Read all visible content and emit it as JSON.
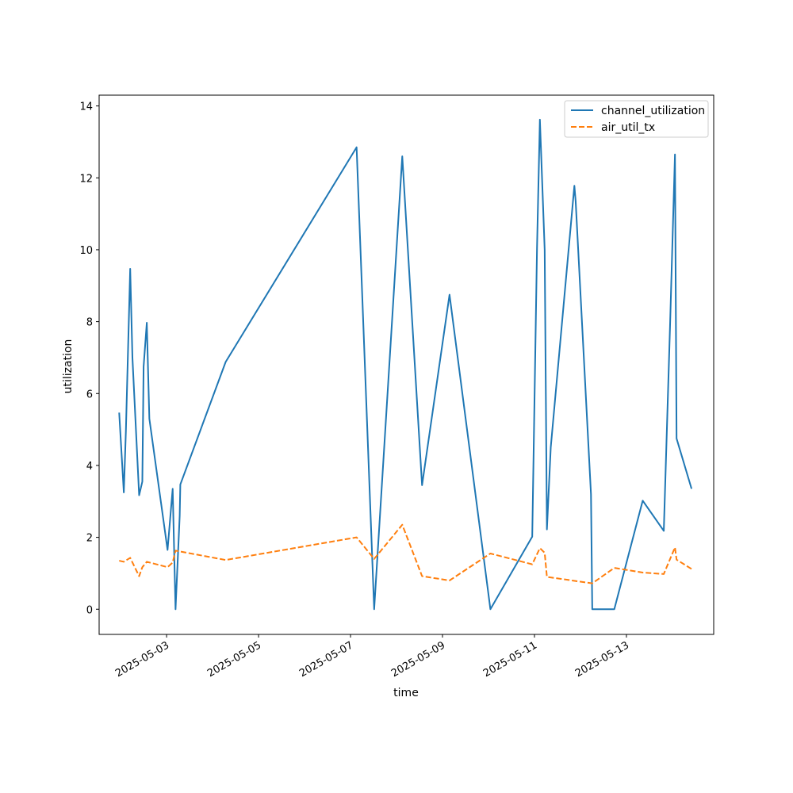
{
  "chart_data": {
    "type": "line",
    "title": "",
    "xlabel": "time",
    "ylabel": "utilization",
    "x_tick_labels": [
      "2025-05-03",
      "2025-05-05",
      "2025-05-07",
      "2025-05-09",
      "2025-05-11",
      "2025-05-13"
    ],
    "y_tick_labels": [
      "0",
      "2",
      "4",
      "6",
      "8",
      "10",
      "12",
      "14"
    ],
    "xlim": [
      "2025-05-01T12:47",
      "2025-05-14T21:33"
    ],
    "ylim": [
      -0.7,
      14.3
    ],
    "legend_position": "top-right",
    "grid": false,
    "series": [
      {
        "name": "channel_utilization",
        "style": "solid",
        "color": "#1f77b4",
        "points": [
          [
            "2025-05-01T23:15",
            5.47
          ],
          [
            "2025-05-02T01:40",
            3.25
          ],
          [
            "2025-05-02T02:45",
            4.95
          ],
          [
            "2025-05-02T05:00",
            9.47
          ],
          [
            "2025-05-02T06:10",
            7.0
          ],
          [
            "2025-05-02T09:40",
            3.17
          ],
          [
            "2025-05-02T11:20",
            3.55
          ],
          [
            "2025-05-02T12:00",
            6.75
          ],
          [
            "2025-05-02T13:40",
            7.97
          ],
          [
            "2025-05-02T15:00",
            5.3
          ],
          [
            "2025-05-03T00:30",
            1.65
          ],
          [
            "2025-05-03T03:10",
            3.35
          ],
          [
            "2025-05-03T04:40",
            0.0
          ],
          [
            "2025-05-03T06:50",
            2.6
          ],
          [
            "2025-05-03T07:10",
            3.47
          ],
          [
            "2025-05-04T06:50",
            6.88
          ],
          [
            "2025-05-07T03:10",
            12.85
          ],
          [
            "2025-05-07T12:20",
            0.0
          ],
          [
            "2025-05-08T03:00",
            12.6
          ],
          [
            "2025-05-08T13:20",
            3.45
          ],
          [
            "2025-05-09T03:40",
            8.75
          ],
          [
            "2025-05-10T01:00",
            0.0
          ],
          [
            "2025-05-10T22:50",
            2.02
          ],
          [
            "2025-05-11T01:20",
            10.05
          ],
          [
            "2025-05-11T02:50",
            13.62
          ],
          [
            "2025-05-11T05:20",
            10.0
          ],
          [
            "2025-05-11T06:30",
            2.22
          ],
          [
            "2025-05-11T08:30",
            4.5
          ],
          [
            "2025-05-11T20:50",
            11.78
          ],
          [
            "2025-05-11T21:30",
            11.35
          ],
          [
            "2025-05-12T05:30",
            3.2
          ],
          [
            "2025-05-12T06:10",
            0.0
          ],
          [
            "2025-05-12T17:40",
            0.0
          ],
          [
            "2025-05-13T08:30",
            3.02
          ],
          [
            "2025-05-13T19:30",
            2.18
          ],
          [
            "2025-05-13T22:50",
            8.0
          ],
          [
            "2025-05-14T01:20",
            12.65
          ],
          [
            "2025-05-14T02:10",
            4.75
          ],
          [
            "2025-05-14T10:00",
            3.35
          ]
        ]
      },
      {
        "name": "air_util_tx",
        "style": "dashed",
        "color": "#ff7f0e",
        "points": [
          [
            "2025-05-01T23:15",
            1.35
          ],
          [
            "2025-05-02T01:40",
            1.32
          ],
          [
            "2025-05-02T05:00",
            1.43
          ],
          [
            "2025-05-02T09:40",
            0.92
          ],
          [
            "2025-05-02T11:20",
            1.17
          ],
          [
            "2025-05-02T13:40",
            1.32
          ],
          [
            "2025-05-03T00:30",
            1.17
          ],
          [
            "2025-05-03T03:10",
            1.3
          ],
          [
            "2025-05-03T04:40",
            1.63
          ],
          [
            "2025-05-04T06:50",
            1.37
          ],
          [
            "2025-05-07T03:10",
            2.0
          ],
          [
            "2025-05-07T12:20",
            1.4
          ],
          [
            "2025-05-08T03:00",
            2.35
          ],
          [
            "2025-05-08T13:20",
            0.92
          ],
          [
            "2025-05-09T03:40",
            0.8
          ],
          [
            "2025-05-10T01:00",
            1.55
          ],
          [
            "2025-05-10T22:50",
            1.25
          ],
          [
            "2025-05-11T02:50",
            1.7
          ],
          [
            "2025-05-11T05:20",
            1.57
          ],
          [
            "2025-05-11T06:30",
            0.9
          ],
          [
            "2025-05-12T06:10",
            0.72
          ],
          [
            "2025-05-12T17:40",
            1.15
          ],
          [
            "2025-05-13T08:30",
            1.02
          ],
          [
            "2025-05-13T19:30",
            0.98
          ],
          [
            "2025-05-14T01:20",
            1.72
          ],
          [
            "2025-05-14T02:10",
            1.38
          ],
          [
            "2025-05-14T10:00",
            1.12
          ]
        ]
      }
    ]
  }
}
